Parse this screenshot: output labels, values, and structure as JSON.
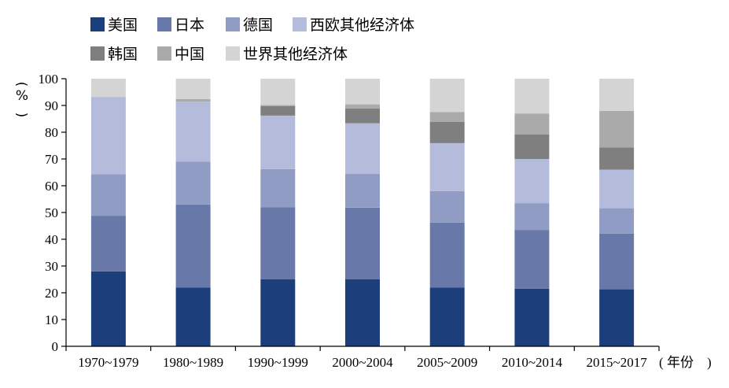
{
  "chart_data": {
    "type": "bar",
    "stacked": true,
    "ylabel": "%",
    "xlabel": "年份",
    "ylim": [
      0,
      100
    ],
    "yticks": [
      0,
      10,
      20,
      30,
      40,
      50,
      60,
      70,
      80,
      90,
      100
    ],
    "categories": [
      "1970~1979",
      "1980~1989",
      "1990~1999",
      "2000~2004",
      "2005~2009",
      "2010~2014",
      "2015~2017"
    ],
    "legend_position": "top-left",
    "grid": false,
    "series": [
      {
        "name": "美国",
        "color": "#1c3f7c",
        "values": [
          28,
          22,
          25,
          25,
          22,
          21.5,
          21.3
        ]
      },
      {
        "name": "日本",
        "color": "#6878a8",
        "values": [
          20.8,
          31,
          27,
          26.8,
          24.2,
          22,
          20.8
        ]
      },
      {
        "name": "德国",
        "color": "#909cc4",
        "values": [
          15.5,
          16,
          14.2,
          12.6,
          11.8,
          10,
          9.5
        ]
      },
      {
        "name": "西欧其他经济体",
        "color": "#b5bbdb",
        "values": [
          28.9,
          22.4,
          20,
          18.9,
          17.9,
          16.5,
          14.4
        ]
      },
      {
        "name": "韩国",
        "color": "#7f7f7f",
        "values": [
          0,
          0,
          3.5,
          5.6,
          8,
          9.2,
          8.3
        ]
      },
      {
        "name": "中国",
        "color": "#aaaaaa",
        "values": [
          0,
          1,
          0.5,
          1.5,
          3.6,
          7.8,
          13.7
        ]
      },
      {
        "name": "世界其他经济体",
        "color": "#d4d4d4",
        "values": [
          6.8,
          7.6,
          9.8,
          9.6,
          12.5,
          13,
          12
        ]
      }
    ]
  }
}
